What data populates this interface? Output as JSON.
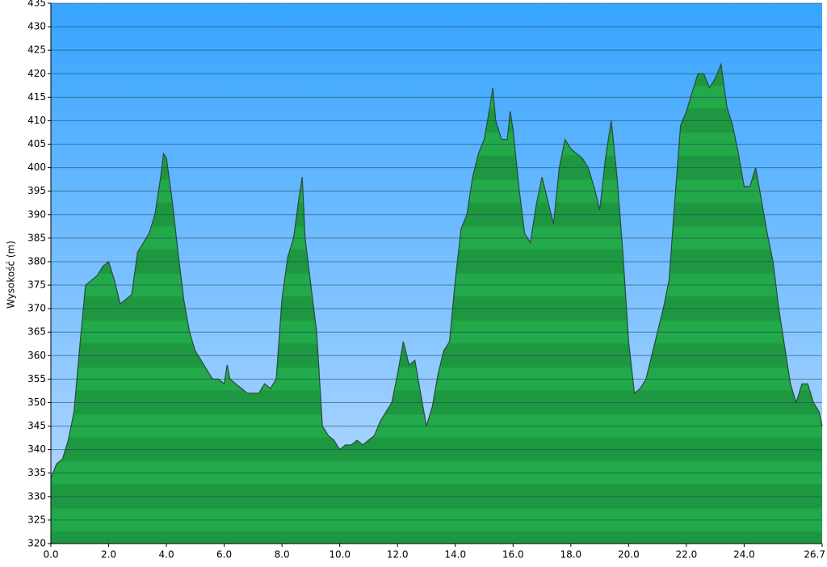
{
  "chart_data": {
    "type": "area",
    "y_label": "Wysokość (m)",
    "x": [
      0.0,
      0.2,
      0.4,
      0.6,
      0.8,
      1.0,
      1.2,
      1.4,
      1.6,
      1.8,
      2.0,
      2.2,
      2.4,
      2.6,
      2.8,
      3.0,
      3.2,
      3.4,
      3.6,
      3.8,
      3.9,
      4.0,
      4.2,
      4.4,
      4.6,
      4.8,
      5.0,
      5.2,
      5.4,
      5.6,
      5.8,
      6.0,
      6.1,
      6.2,
      6.4,
      6.6,
      6.8,
      7.0,
      7.2,
      7.4,
      7.6,
      7.8,
      8.0,
      8.2,
      8.4,
      8.6,
      8.7,
      8.8,
      9.0,
      9.2,
      9.4,
      9.6,
      9.8,
      10.0,
      10.2,
      10.4,
      10.6,
      10.8,
      11.0,
      11.2,
      11.4,
      11.6,
      11.8,
      12.0,
      12.2,
      12.4,
      12.6,
      12.8,
      13.0,
      13.2,
      13.4,
      13.6,
      13.8,
      14.0,
      14.2,
      14.4,
      14.6,
      14.8,
      15.0,
      15.2,
      15.3,
      15.4,
      15.6,
      15.8,
      15.9,
      16.0,
      16.2,
      16.4,
      16.6,
      16.8,
      17.0,
      17.2,
      17.4,
      17.6,
      17.8,
      18.0,
      18.2,
      18.4,
      18.6,
      18.8,
      19.0,
      19.2,
      19.4,
      19.6,
      19.8,
      20.0,
      20.2,
      20.4,
      20.6,
      20.8,
      21.0,
      21.2,
      21.4,
      21.6,
      21.8,
      22.0,
      22.2,
      22.4,
      22.6,
      22.8,
      23.0,
      23.2,
      23.4,
      23.6,
      23.8,
      24.0,
      24.2,
      24.4,
      24.6,
      24.8,
      25.0,
      25.2,
      25.4,
      25.6,
      25.8,
      26.0,
      26.2,
      26.4,
      26.6,
      26.7
    ],
    "values": [
      334,
      337,
      338,
      342,
      348,
      362,
      375,
      376,
      377,
      379,
      380,
      376,
      371,
      372,
      373,
      382,
      384,
      386,
      390,
      398,
      403,
      402,
      393,
      382,
      372,
      365,
      361,
      359,
      357,
      355,
      355,
      354,
      358,
      355,
      354,
      353,
      352,
      352,
      352,
      354,
      353,
      355,
      372,
      381,
      385,
      394,
      398,
      385,
      375,
      365,
      345,
      343,
      342,
      340,
      341,
      341,
      342,
      341,
      342,
      343,
      346,
      348,
      350,
      356,
      363,
      358,
      359,
      352,
      345,
      349,
      356,
      361,
      363,
      376,
      387,
      390,
      398,
      403,
      406,
      413,
      417,
      410,
      406,
      406,
      412,
      408,
      396,
      386,
      384,
      392,
      398,
      393,
      388,
      400,
      406,
      404,
      403,
      402,
      400,
      396,
      391,
      402,
      410,
      398,
      382,
      363,
      352,
      353,
      355,
      360,
      365,
      370,
      376,
      393,
      409,
      412,
      416,
      420,
      420,
      417,
      419,
      422,
      413,
      409,
      403,
      396,
      396,
      400,
      393,
      386,
      380,
      370,
      362,
      354,
      350,
      354,
      354,
      350,
      348,
      345
    ],
    "color": "#1fa045",
    "xlim": [
      0,
      26.7
    ],
    "xticks": [
      {
        "value": 0,
        "label": "0.0"
      },
      {
        "value": 2,
        "label": "2.0"
      },
      {
        "value": 4,
        "label": "4.0"
      },
      {
        "value": 6,
        "label": "6.0"
      },
      {
        "value": 8,
        "label": "8.0"
      },
      {
        "value": 10,
        "label": "10.0"
      },
      {
        "value": 12,
        "label": "12.0"
      },
      {
        "value": 14,
        "label": "14.0"
      },
      {
        "value": 16,
        "label": "16.0"
      },
      {
        "value": 18,
        "label": "18.0"
      },
      {
        "value": 20,
        "label": "20.0"
      },
      {
        "value": 22,
        "label": "22.0"
      },
      {
        "value": 24,
        "label": "24.0"
      },
      {
        "value": 26.7,
        "label": "26.7"
      }
    ],
    "ylim": [
      320,
      435
    ],
    "yticks": [
      320,
      325,
      330,
      335,
      340,
      345,
      350,
      355,
      360,
      365,
      370,
      375,
      380,
      385,
      390,
      395,
      400,
      405,
      410,
      415,
      420,
      425,
      430,
      435
    ],
    "grid": true
  }
}
